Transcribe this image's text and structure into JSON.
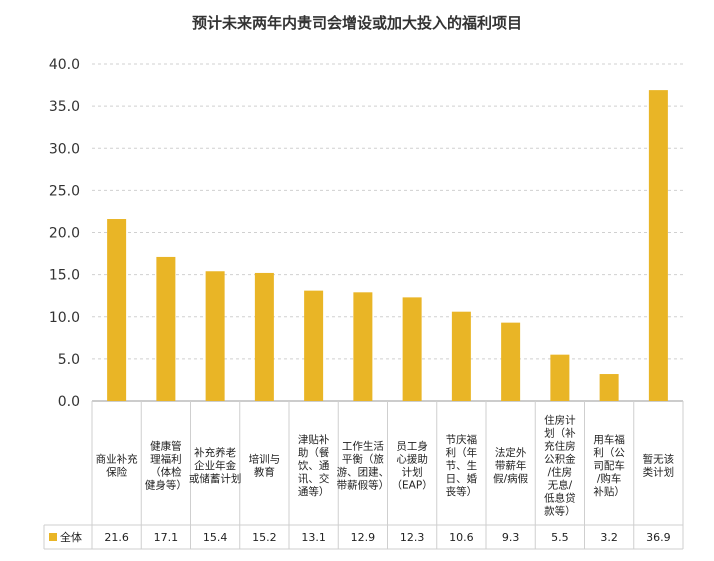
{
  "chart_data": {
    "type": "bar",
    "title": "预计未来两年内贵司会增设或加大投入的福利项目",
    "categories": [
      "商业补充保险",
      "健康管理福利（体检健身等）",
      "补充养老企业年金或储蓄计划",
      "培训与教育",
      "津贴补助（餐饮、通讯、交通等）",
      "工作生活平衡（旅游、团建、带薪假等）",
      "员工身心援助计划（EAP）",
      "节庆福利（年节、生日、婚丧等）",
      "法定外带薪年假/病假",
      "住房计划（补充住房公积金/住房无息/低息贷款等）",
      "用车福利（公司配车/购车补贴）",
      "暂无该类计划"
    ],
    "category_lines": [
      [
        "商业补充",
        "保险"
      ],
      [
        "健康管",
        "理福利",
        "（体检",
        "健身等）"
      ],
      [
        "补充养老",
        "企业年金",
        "或储蓄计划"
      ],
      [
        "培训与",
        "教育"
      ],
      [
        "津贴补",
        "助（餐",
        "饮、通",
        "讯、交",
        "通等）"
      ],
      [
        "工作生活",
        "平衡（旅",
        "游、团建、",
        "带薪假等）"
      ],
      [
        "员工身",
        "心援助",
        "计划",
        "（EAP）"
      ],
      [
        "节庆福",
        "利（年",
        "节、生",
        "日、婚",
        "丧等）"
      ],
      [
        "法定外",
        "带薪年",
        "假/病假"
      ],
      [
        "住房计",
        "划（补",
        "充住房",
        "公积金",
        "/住房",
        "无息/",
        "低息贷",
        "款等）"
      ],
      [
        "用车福",
        "利（公",
        "司配车",
        "/购车",
        "补贴）"
      ],
      [
        "暂无该",
        "类计划"
      ]
    ],
    "series": [
      {
        "name": "全体",
        "values": [
          21.6,
          17.1,
          15.4,
          15.2,
          13.1,
          12.9,
          12.3,
          10.6,
          9.3,
          5.5,
          3.2,
          36.9
        ]
      }
    ],
    "value_labels": [
      "21.6",
      "17.1",
      "15.4",
      "15.2",
      "13.1",
      "12.9",
      "12.3",
      "10.6",
      "9.3",
      "5.5",
      "3.2",
      "36.9"
    ],
    "y_ticks": [
      "0.0",
      "5.0",
      "10.0",
      "15.0",
      "20.0",
      "25.0",
      "30.0",
      "35.0",
      "40.0"
    ],
    "ylim": [
      0,
      40
    ],
    "grid": true,
    "legend": "bottom-left, in data table",
    "bar_color": "#E9B526",
    "xlabel": "",
    "ylabel": ""
  }
}
